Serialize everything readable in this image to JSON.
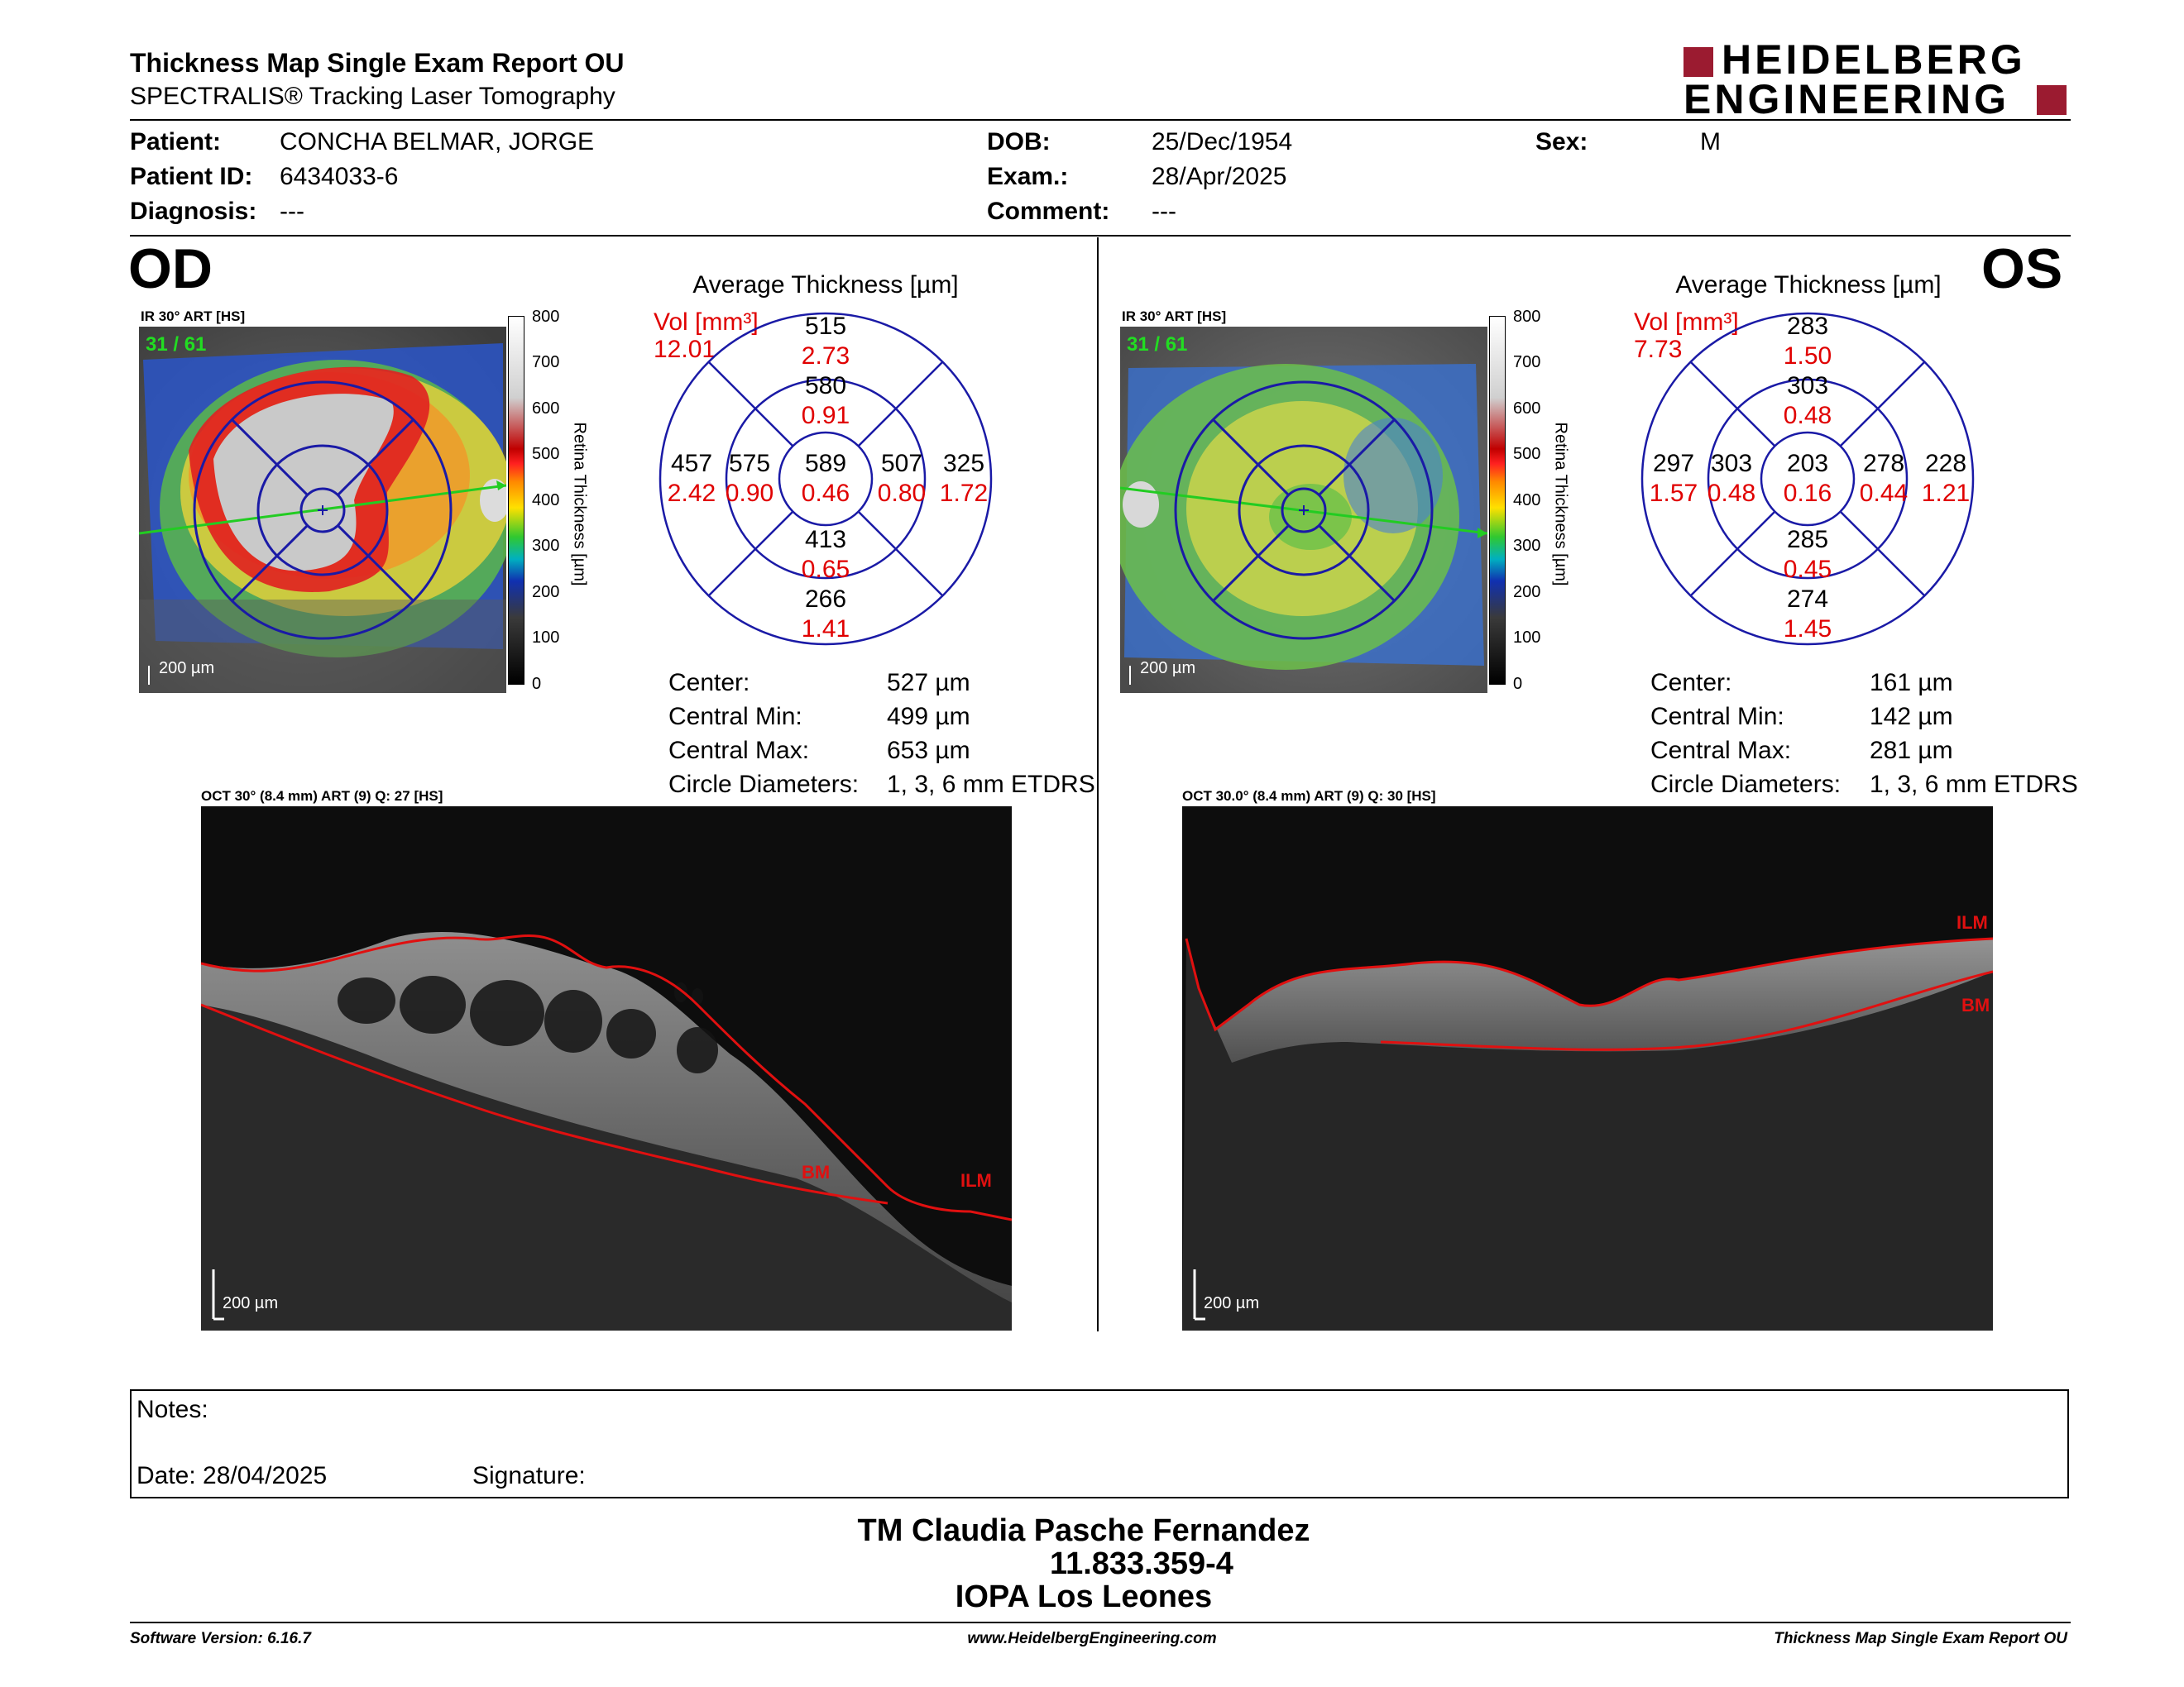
{
  "header": {
    "title": "Thickness Map Single Exam Report OU",
    "subtitle": "SPECTRALIS® Tracking Laser Tomography",
    "logo_line1": "HEIDELBERG",
    "logo_line2": "ENGINEERING"
  },
  "patient": {
    "patient_label": "Patient:",
    "patient_value": "CONCHA BELMAR, JORGE",
    "id_label": "Patient ID:",
    "id_value": "6434033-6",
    "diag_label": "Diagnosis:",
    "diag_value": "---",
    "dob_label": "DOB:",
    "dob_value": "25/Dec/1954",
    "exam_label": "Exam.:",
    "exam_value": "28/Apr/2025",
    "comment_label": "Comment:",
    "comment_value": "---",
    "sex_label": "Sex:",
    "sex_value": "M"
  },
  "colorbar": {
    "ticks": [
      "800",
      "700",
      "600",
      "500",
      "400",
      "300",
      "200",
      "100",
      "0"
    ],
    "label": "Retina Thickness [µm]"
  },
  "od": {
    "eye": "OD",
    "ir_label": "IR 30° ART [HS]",
    "frame": "31 / 61",
    "scale": "200 µm",
    "avg_title": "Average Thickness [µm]",
    "vol_label": "Vol [mm³]",
    "vol_value": "12.01",
    "grid": {
      "center": {
        "t": "589",
        "v": "0.46"
      },
      "inner_sup": {
        "t": "580",
        "v": "0.91"
      },
      "inner_inf": {
        "t": "413",
        "v": "0.65"
      },
      "inner_nasal_l": {
        "t": "575",
        "v": "0.90"
      },
      "inner_nasal_r": {
        "t": "507",
        "v": "0.80"
      },
      "outer_sup": {
        "t": "515",
        "v": "2.73"
      },
      "outer_inf": {
        "t": "266",
        "v": "1.41"
      },
      "outer_l": {
        "t": "457",
        "v": "2.42"
      },
      "outer_r": {
        "t": "325",
        "v": "1.72"
      }
    },
    "stats": {
      "center_label": "Center:",
      "center_value": "527 µm",
      "min_label": "Central Min:",
      "min_value": "499 µm",
      "max_label": "Central Max:",
      "max_value": "653 µm",
      "circ_label": "Circle Diameters:",
      "circ_value": "1, 3, 6 mm ETDRS"
    },
    "oct_label": "OCT 30° (8.4 mm) ART (9) Q: 27 [HS]",
    "oct_ilm": "ILM",
    "oct_bm": "BM",
    "oct_scale": "200 µm"
  },
  "os": {
    "eye": "OS",
    "ir_label": "IR 30° ART [HS]",
    "frame": "31 / 61",
    "scale": "200 µm",
    "avg_title": "Average Thickness [µm]",
    "vol_label": "Vol [mm³]",
    "vol_value": "7.73",
    "grid": {
      "center": {
        "t": "203",
        "v": "0.16"
      },
      "inner_sup": {
        "t": "303",
        "v": "0.48"
      },
      "inner_inf": {
        "t": "285",
        "v": "0.45"
      },
      "inner_nasal_l": {
        "t": "303",
        "v": "0.48"
      },
      "inner_nasal_r": {
        "t": "278",
        "v": "0.44"
      },
      "outer_sup": {
        "t": "283",
        "v": "1.50"
      },
      "outer_inf": {
        "t": "274",
        "v": "1.45"
      },
      "outer_l": {
        "t": "297",
        "v": "1.57"
      },
      "outer_r": {
        "t": "228",
        "v": "1.21"
      }
    },
    "stats": {
      "center_label": "Center:",
      "center_value": "161 µm",
      "min_label": "Central Min:",
      "min_value": "142 µm",
      "max_label": "Central Max:",
      "max_value": "281 µm",
      "circ_label": "Circle Diameters:",
      "circ_value": "1, 3, 6 mm ETDRS"
    },
    "oct_label": "OCT 30.0° (8.4 mm) ART (9) Q: 30 [HS]",
    "oct_ilm": "ILM",
    "oct_bm": "BM",
    "oct_scale": "200 µm"
  },
  "notes": {
    "notes_label": "Notes:",
    "date_label": "Date: 28/04/2025",
    "signature_label": "Signature:"
  },
  "signature_block": {
    "line1": "TM Claudia Pasche Fernandez",
    "line2": "11.833.359-4",
    "line3": "IOPA Los Leones"
  },
  "footer": {
    "software": "Software Version: 6.16.7",
    "website": "www.HeidelbergEngineering.com",
    "report": "Thickness Map Single Exam Report OU"
  },
  "colors": {
    "etdrs_grid": "#1a1aa6",
    "volume_red": "#e00000",
    "logo_red": "#9b1b30",
    "scan_line": "#22cc22",
    "ilm_red": "#e01010"
  }
}
